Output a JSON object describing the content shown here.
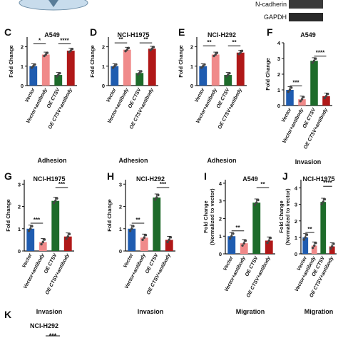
{
  "header": {
    "blot_labels": [
      "N-cadherin",
      "GAPDH"
    ]
  },
  "colors": {
    "vector": "#1f5cb0",
    "vector_antibody": "#f08a8a",
    "oe": "#1d6b2a",
    "oe_antibody": "#b01818",
    "dish": "#c8dcec"
  },
  "chart_data": [
    {
      "panel_letter": "C",
      "type": "bar",
      "title": "A549",
      "xlabel": "Adhesion",
      "ylabel": "Fold Change",
      "categories": [
        "Vector",
        "Vector+antibody",
        "OE CTSV",
        "OE CTSV+antibody"
      ],
      "values": [
        1.0,
        1.6,
        0.55,
        1.8
      ],
      "ylim": [
        0,
        2.5
      ],
      "yticks": [
        "0",
        "1",
        "2"
      ],
      "ytick_values": [
        0,
        1,
        2
      ],
      "significance": [
        {
          "label": "*",
          "from": 0,
          "to": 1,
          "y": 2.15
        },
        {
          "label": "****",
          "from": 2,
          "to": 3,
          "y": 2.15
        }
      ]
    },
    {
      "panel_letter": "D",
      "type": "bar",
      "title": "NCI-H1975",
      "xlabel": "Adhesion",
      "ylabel": "Fold Change",
      "categories": [
        "Vector",
        "Vector+antibody",
        "OE CTSV",
        "OE CTSV+antibody"
      ],
      "values": [
        1.0,
        1.85,
        0.65,
        1.9
      ],
      "ylim": [
        0,
        2.5
      ],
      "yticks": [
        "0",
        "1",
        "2"
      ],
      "ytick_values": [
        0,
        1,
        2
      ],
      "significance": [
        {
          "label": "**",
          "from": 0,
          "to": 1,
          "y": 2.2
        },
        {
          "label": "**",
          "from": 2,
          "to": 3,
          "y": 2.2
        }
      ]
    },
    {
      "panel_letter": "E",
      "type": "bar",
      "title": "NCI-H292",
      "xlabel": "Adhesion",
      "ylabel": "Fold Change",
      "categories": [
        "Vector",
        "Vector+antibody",
        "OE CTSV",
        "OE CTSV+antibody"
      ],
      "values": [
        1.0,
        1.6,
        0.55,
        1.7
      ],
      "ylim": [
        0,
        2.5
      ],
      "yticks": [
        "0",
        "1",
        "2"
      ],
      "ytick_values": [
        0,
        1,
        2
      ],
      "significance": [
        {
          "label": "**",
          "from": 0,
          "to": 1,
          "y": 2.05
        },
        {
          "label": "**",
          "from": 2,
          "to": 3,
          "y": 2.05
        }
      ]
    },
    {
      "panel_letter": "F",
      "type": "bar",
      "title": "A549",
      "xlabel": "Invasion",
      "ylabel": "Fold Change",
      "categories": [
        "Vector",
        "Vector+antibody",
        "OE CTSV",
        "OE CTSV+antibody"
      ],
      "values": [
        1.0,
        0.4,
        2.85,
        0.6
      ],
      "ylim": [
        0,
        4
      ],
      "yticks": [
        "0",
        "1",
        "2",
        "3",
        "4"
      ],
      "ytick_values": [
        0,
        1,
        2,
        3,
        4
      ],
      "significance": [
        {
          "label": "***",
          "from": 0,
          "to": 1,
          "y": 1.25
        },
        {
          "label": "****",
          "from": 2,
          "to": 3,
          "y": 3.15
        }
      ]
    },
    {
      "panel_letter": "G",
      "type": "bar",
      "title": "NCI-H1975",
      "xlabel": "Invasion",
      "ylabel": "Fold Change",
      "categories": [
        "Vector",
        "Vector+antibody",
        "OE CTSV",
        "OE CTSV+antibody"
      ],
      "values": [
        1.0,
        0.4,
        2.25,
        0.65
      ],
      "ylim": [
        0,
        3.2
      ],
      "yticks": [
        "0",
        "1",
        "2",
        "3"
      ],
      "ytick_values": [
        0,
        1,
        2,
        3
      ],
      "significance": [
        {
          "label": "***",
          "from": 0,
          "to": 1,
          "y": 1.25
        },
        {
          "label": "***",
          "from": 2,
          "to": 3,
          "y": 2.85
        }
      ]
    },
    {
      "panel_letter": "H",
      "type": "bar",
      "title": "NCI-H292",
      "xlabel": "Invasion",
      "ylabel": "Fold Change",
      "categories": [
        "Vector",
        "Vector+antibody",
        "OE CTSV",
        "OE CTSV+antibody"
      ],
      "values": [
        1.0,
        0.6,
        2.4,
        0.5
      ],
      "ylim": [
        0,
        3.2
      ],
      "yticks": [
        "0",
        "1",
        "2",
        "3"
      ],
      "ytick_values": [
        0,
        1,
        2,
        3
      ],
      "significance": [
        {
          "label": "**",
          "from": 0,
          "to": 1,
          "y": 1.25
        },
        {
          "label": "***",
          "from": 2,
          "to": 3,
          "y": 2.85
        }
      ]
    },
    {
      "panel_letter": "I",
      "type": "bar",
      "title": "A549",
      "xlabel": "Migration",
      "ylabel": "Fold Change\n(Normalized to vector)",
      "categories": [
        "Vector",
        "Vector+antibody",
        "OE CTSV",
        "OE CTSV+antibody"
      ],
      "values": [
        1.0,
        0.6,
        2.9,
        0.75
      ],
      "ylim": [
        0,
        4.2
      ],
      "yticks": [
        "0",
        "1",
        "2",
        "3",
        "4"
      ],
      "ytick_values": [
        0,
        1,
        2,
        3,
        4
      ],
      "significance": [
        {
          "label": "**",
          "from": 0,
          "to": 1,
          "y": 1.3
        },
        {
          "label": "**",
          "from": 2,
          "to": 3,
          "y": 3.75
        }
      ]
    },
    {
      "panel_letter": "J",
      "type": "bar",
      "title": "NCI-H1975",
      "xlabel": "Migration",
      "ylabel": "Fold Change\n(Normalized to vector)",
      "categories": [
        "Vector",
        "Vector+antibody",
        "OE CTSV",
        "OE CTSV+antibody"
      ],
      "values": [
        1.0,
        0.5,
        3.15,
        0.45
      ],
      "ylim": [
        0,
        4.5
      ],
      "yticks": [
        "0",
        "1",
        "2",
        "3",
        "4"
      ],
      "ytick_values": [
        0,
        1,
        2,
        3,
        4
      ],
      "significance": [
        {
          "label": "**",
          "from": 0,
          "to": 1,
          "y": 1.3
        },
        {
          "label": "****",
          "from": 2,
          "to": 3,
          "y": 4.1
        }
      ]
    }
  ],
  "panel_k": {
    "letter": "K",
    "title": "NCI-H292",
    "partial_sig": "***"
  }
}
